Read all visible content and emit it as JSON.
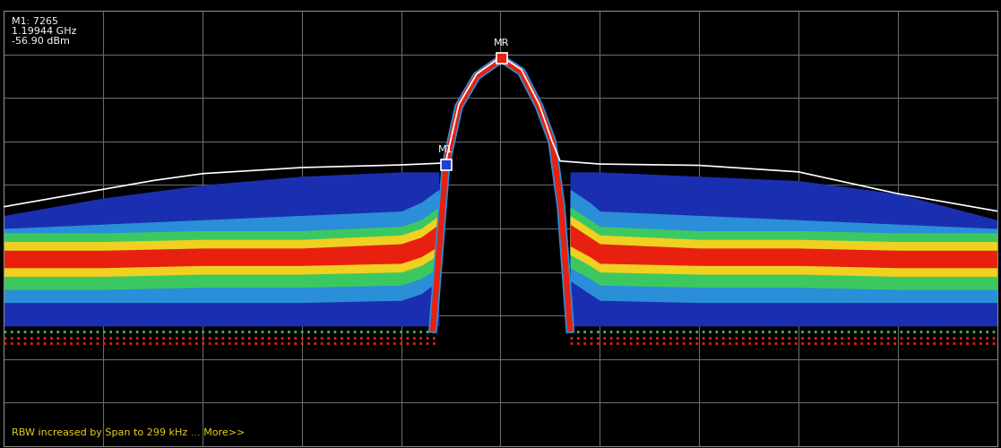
{
  "chart_data": {
    "type": "density",
    "xlim": [
      0,
      10
    ],
    "ylim": [
      0,
      10
    ],
    "xticks": [
      0,
      1,
      2,
      3,
      4,
      5,
      6,
      7,
      8,
      9,
      10
    ],
    "yticks": [
      0,
      1,
      2,
      3,
      4,
      5,
      6,
      7,
      8,
      9,
      10
    ],
    "grid": true,
    "tick_labels": false,
    "series": [
      {
        "type": "area",
        "color": "#1a2fb0",
        "x": [
          0,
          1,
          2,
          3,
          4,
          4.2,
          4.38
        ],
        "low": [
          2.76,
          2.76,
          2.76,
          2.76,
          2.76,
          2.76,
          2.76
        ],
        "high": [
          5.3,
          5.7,
          6.0,
          6.2,
          6.3,
          6.3,
          6.3
        ]
      },
      {
        "type": "area",
        "color": "#1a2fb0",
        "x": [
          5.7,
          5.9,
          6,
          7,
          8,
          9,
          10
        ],
        "low": [
          2.76,
          2.76,
          2.76,
          2.76,
          2.76,
          2.76,
          2.76
        ],
        "high": [
          6.3,
          6.3,
          6.3,
          6.2,
          6.1,
          5.8,
          5.2
        ]
      },
      {
        "type": "area",
        "color": "#2a8fd8",
        "x": [
          0,
          1,
          2,
          3,
          4,
          4.2,
          4.38
        ],
        "low": [
          3.3,
          3.3,
          3.3,
          3.3,
          3.35,
          3.5,
          3.8
        ],
        "high": [
          5.0,
          5.1,
          5.2,
          5.3,
          5.4,
          5.6,
          5.9
        ]
      },
      {
        "type": "area",
        "color": "#2a8fd8",
        "x": [
          5.7,
          5.9,
          6,
          7,
          8,
          9,
          10
        ],
        "low": [
          3.8,
          3.5,
          3.35,
          3.3,
          3.3,
          3.3,
          3.3
        ],
        "high": [
          5.9,
          5.6,
          5.4,
          5.3,
          5.2,
          5.1,
          5.0
        ]
      },
      {
        "type": "area",
        "color": "#3cc860",
        "x": [
          0,
          1,
          2,
          3,
          4,
          4.2,
          4.38
        ],
        "low": [
          3.6,
          3.6,
          3.65,
          3.65,
          3.7,
          3.85,
          4.1
        ],
        "high": [
          4.9,
          4.9,
          4.95,
          4.95,
          5.05,
          5.2,
          5.5
        ]
      },
      {
        "type": "area",
        "color": "#3cc860",
        "x": [
          5.7,
          5.9,
          6,
          7,
          8,
          9,
          10
        ],
        "low": [
          4.1,
          3.85,
          3.7,
          3.65,
          3.65,
          3.6,
          3.6
        ],
        "high": [
          5.5,
          5.2,
          5.05,
          4.95,
          4.95,
          4.9,
          4.9
        ]
      },
      {
        "type": "area",
        "color": "#f0d020",
        "x": [
          0,
          1,
          2,
          3,
          4,
          4.2,
          4.38
        ],
        "low": [
          3.9,
          3.9,
          3.95,
          3.95,
          4.0,
          4.15,
          4.4
        ],
        "high": [
          4.7,
          4.7,
          4.75,
          4.75,
          4.85,
          5.0,
          5.3
        ]
      },
      {
        "type": "area",
        "color": "#f0d020",
        "x": [
          5.7,
          5.9,
          6,
          7,
          8,
          9,
          10
        ],
        "low": [
          4.4,
          4.15,
          4.0,
          3.95,
          3.95,
          3.9,
          3.9
        ],
        "high": [
          5.3,
          5.0,
          4.85,
          4.75,
          4.75,
          4.7,
          4.7
        ]
      },
      {
        "type": "area",
        "color": "#e82010",
        "x": [
          0,
          1,
          2,
          3,
          4,
          4.2,
          4.38
        ],
        "low": [
          4.1,
          4.1,
          4.15,
          4.15,
          4.2,
          4.35,
          4.6
        ],
        "high": [
          4.5,
          4.5,
          4.55,
          4.55,
          4.65,
          4.8,
          5.1
        ]
      },
      {
        "type": "area",
        "color": "#e82010",
        "x": [
          5.7,
          5.9,
          6,
          7,
          8,
          9,
          10
        ],
        "low": [
          4.6,
          4.35,
          4.2,
          4.15,
          4.15,
          4.1,
          4.1
        ],
        "high": [
          5.1,
          4.8,
          4.65,
          4.55,
          4.55,
          4.5,
          4.5
        ]
      },
      {
        "type": "line",
        "line_style": "dotted",
        "color": "#30c060",
        "x": [
          0,
          4.35,
          5.0,
          5.7,
          10
        ],
        "values": [
          2.64,
          2.64,
          null,
          2.64,
          2.64
        ]
      },
      {
        "type": "line",
        "line_style": "dotted",
        "color": "#e82010",
        "x": [
          0,
          4.35,
          5.0,
          5.7,
          10
        ],
        "values": [
          2.5,
          2.5,
          null,
          2.5,
          2.5
        ]
      },
      {
        "type": "line",
        "line_style": "dotted",
        "color": "#e82010",
        "x": [
          0,
          4.35,
          5.0,
          5.7,
          10
        ],
        "values": [
          2.36,
          2.36,
          null,
          2.36,
          2.36
        ]
      },
      {
        "type": "line",
        "line_style": "solid",
        "color": "#e82010",
        "x": [
          4.32,
          4.45,
          4.58,
          4.76,
          5.01,
          5.21,
          5.39,
          5.52,
          5.61,
          5.7
        ],
        "values": [
          2.7,
          6.46,
          7.8,
          8.5,
          8.9,
          8.6,
          7.8,
          7.0,
          5.5,
          2.7
        ]
      },
      {
        "type": "line",
        "line_style": "solid",
        "color": "#ffffff",
        "x": [
          0,
          1,
          1.5,
          2,
          3,
          4,
          4.4,
          4.45,
          4.58,
          4.76,
          5.01,
          5.21,
          5.39,
          5.52,
          5.6,
          6,
          7,
          8,
          9,
          10
        ],
        "values": [
          5.5,
          5.9,
          6.1,
          6.26,
          6.4,
          6.46,
          6.5,
          6.55,
          7.85,
          8.55,
          8.95,
          8.65,
          7.85,
          7.0,
          6.55,
          6.48,
          6.45,
          6.3,
          5.8,
          5.4
        ]
      }
    ],
    "markers": [
      {
        "label": "MR",
        "x": 5.01,
        "y": 8.9,
        "color": "#e82010"
      },
      {
        "label": "M1",
        "x": 4.45,
        "y": 6.46,
        "color": "#2040d0"
      }
    ],
    "readout": [
      "M1: 7265",
      "1.19944 GHz",
      "-56.90 dBm"
    ],
    "status": "RBW increased by Span to 299 kHz ... More>>"
  }
}
